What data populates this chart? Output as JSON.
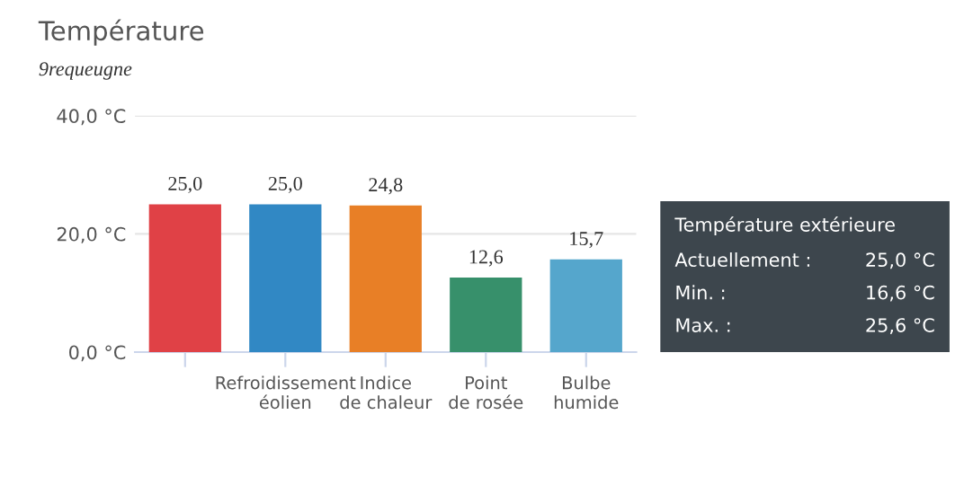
{
  "chart_data": {
    "type": "bar",
    "title": "Température",
    "subtitle": "9requeugne",
    "categories": [
      null,
      "Refroidissement éolien",
      "Indice de chaleur",
      "Point de rosée",
      "Bulbe humide"
    ],
    "values": [
      25.0,
      25.0,
      24.8,
      12.6,
      15.7
    ],
    "value_labels": [
      "25,0",
      "25,0",
      "24,8",
      "12,6",
      "15,7"
    ],
    "colors": [
      "#e04146",
      "#3188c4",
      "#e87f26",
      "#37906b",
      "#55a6cc"
    ],
    "ylim": [
      0,
      40
    ],
    "yticks": [
      {
        "value": 0,
        "label": "0,0 °C"
      },
      {
        "value": 20,
        "label": "20,0 °C"
      },
      {
        "value": 40,
        "label": "40,0 °C"
      }
    ],
    "grid": "y",
    "annotations": [
      "Température extérieure",
      "Actuellement :",
      "25,0 °C",
      "Min. :",
      "16,6 °C",
      "Max. :",
      "25,6 °C"
    ]
  }
}
